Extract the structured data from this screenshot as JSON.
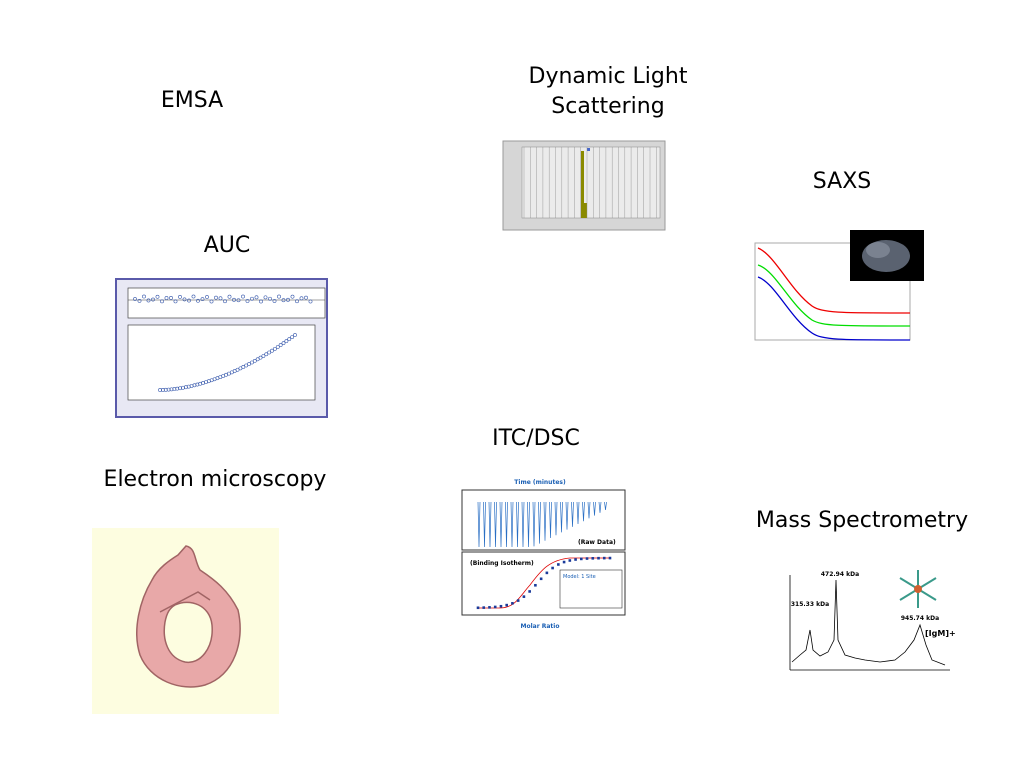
{
  "sections": [
    {
      "label": "EMSA"
    },
    {
      "label": "Dynamic Light"
    },
    {
      "label": "Scattering"
    },
    {
      "label": "SAXS"
    },
    {
      "label": "AUC"
    },
    {
      "label": "ITC/DSC"
    },
    {
      "label": "Electron microscopy"
    },
    {
      "label": "Mass Spectrometry"
    }
  ],
  "itc_image": {
    "top_axis": "Time (minutes)",
    "raw": "(Raw Data)",
    "isotherm": "(Binding Isotherm)",
    "x_axis": "Molar Ratio",
    "model": "Model: 1 Site"
  },
  "ms_image": {
    "peaks": [
      "472.94 kDa",
      "315.33 kDa",
      "945.74 kDa"
    ],
    "ion": "[IgM]+"
  }
}
